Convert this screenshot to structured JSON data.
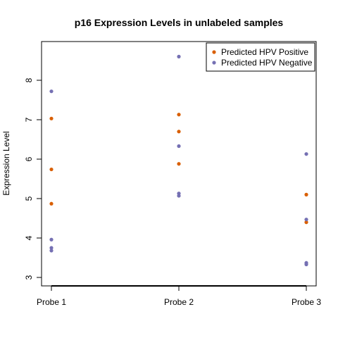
{
  "chart_data": {
    "type": "scatter",
    "title": "p16 Expression Levels in unlabeled samples",
    "xlabel": "",
    "ylabel": "Expression Level",
    "categories": [
      "Probe 1",
      "Probe 2",
      "Probe 3"
    ],
    "yticks": [
      3,
      4,
      5,
      6,
      7,
      8
    ],
    "ylim": [
      2.8,
      8.9
    ],
    "grid": false,
    "legend_position": "top-right",
    "series": [
      {
        "name": "Predicted HPV Positive",
        "color": "#d95f02",
        "points": [
          {
            "x": "Probe 1",
            "y": 7.03
          },
          {
            "x": "Probe 1",
            "y": 5.74
          },
          {
            "x": "Probe 1",
            "y": 4.87
          },
          {
            "x": "Probe 2",
            "y": 7.13
          },
          {
            "x": "Probe 2",
            "y": 6.7
          },
          {
            "x": "Probe 2",
            "y": 5.88
          },
          {
            "x": "Probe 3",
            "y": 5.1
          },
          {
            "x": "Probe 3",
            "y": 4.4
          }
        ]
      },
      {
        "name": "Predicted HPV Negative",
        "color": "#7570b3",
        "points": [
          {
            "x": "Probe 1",
            "y": 7.72
          },
          {
            "x": "Probe 1",
            "y": 3.96
          },
          {
            "x": "Probe 1",
            "y": 3.75
          },
          {
            "x": "Probe 1",
            "y": 3.68
          },
          {
            "x": "Probe 2",
            "y": 8.6
          },
          {
            "x": "Probe 2",
            "y": 6.33
          },
          {
            "x": "Probe 2",
            "y": 5.13
          },
          {
            "x": "Probe 2",
            "y": 5.07
          },
          {
            "x": "Probe 3",
            "y": 6.13
          },
          {
            "x": "Probe 3",
            "y": 4.47
          },
          {
            "x": "Probe 3",
            "y": 3.37
          },
          {
            "x": "Probe 3",
            "y": 3.33
          }
        ]
      }
    ]
  }
}
